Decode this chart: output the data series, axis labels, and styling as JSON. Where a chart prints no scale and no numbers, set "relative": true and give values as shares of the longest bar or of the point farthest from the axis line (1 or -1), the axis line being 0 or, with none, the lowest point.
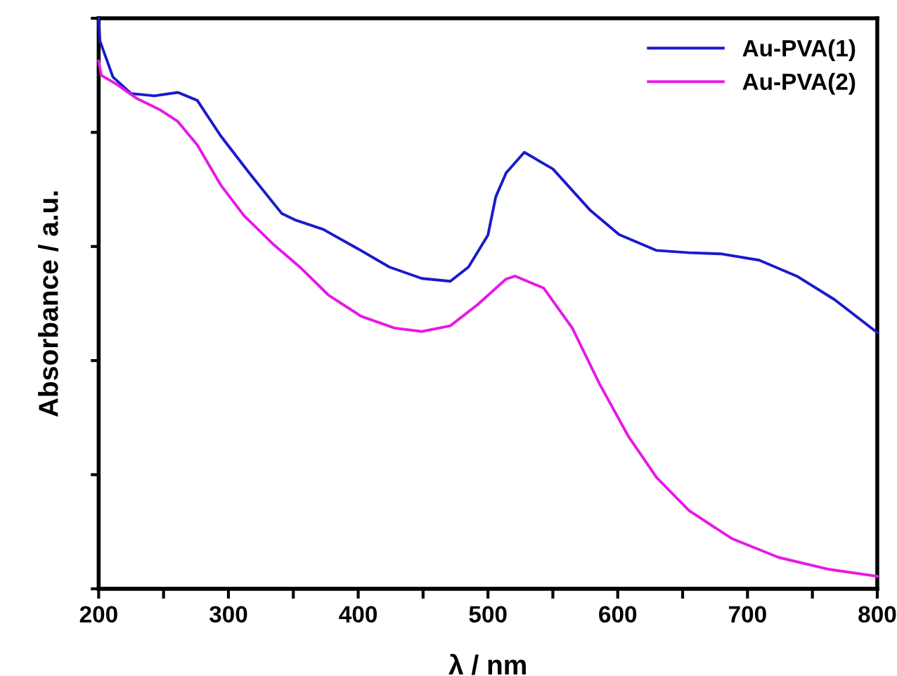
{
  "chart_data": {
    "type": "line",
    "relative": true,
    "xlabel": "λ / nm",
    "ylabel": "Absorbance / a.u.",
    "xlim": [
      200,
      800
    ],
    "xticks": [
      200,
      {
        "value": 250,
        "label": null
      },
      300,
      {
        "value": 350,
        "label": null
      },
      400,
      {
        "value": 450,
        "label": null
      },
      500,
      {
        "value": 550,
        "label": null
      },
      600,
      {
        "value": 650,
        "label": null
      },
      700,
      {
        "value": 750,
        "label": null
      },
      800
    ],
    "tick_labels": "x",
    "legend": "top right",
    "grid": false,
    "series": [
      {
        "name": "Au-PVA(1)",
        "color": "#1a1acc",
        "x": [
          200,
          201,
          211,
          225,
          243,
          261,
          276,
          294,
          316,
          341,
          352,
          373,
          399,
          424,
          449,
          471,
          485,
          500,
          506,
          514,
          528,
          550,
          579,
          601,
          630,
          655,
          680,
          709,
          738,
          767,
          800
        ],
        "values": [
          1.0,
          0.96,
          0.897,
          0.868,
          0.864,
          0.87,
          0.856,
          0.794,
          0.729,
          0.658,
          0.646,
          0.63,
          0.597,
          0.564,
          0.544,
          0.539,
          0.564,
          0.62,
          0.687,
          0.729,
          0.765,
          0.736,
          0.663,
          0.621,
          0.593,
          0.589,
          0.587,
          0.576,
          0.548,
          0.507,
          0.449
        ]
      },
      {
        "name": "Au-PVA(2)",
        "color": "#e619e6",
        "x": [
          200,
          202,
          214,
          229,
          247,
          261,
          276,
          294,
          312,
          334,
          355,
          377,
          402,
          428,
          449,
          471,
          492,
          514,
          521,
          543,
          565,
          586,
          608,
          630,
          655,
          688,
          724,
          763,
          800
        ],
        "values": [
          0.925,
          0.9,
          0.884,
          0.86,
          0.84,
          0.819,
          0.778,
          0.708,
          0.654,
          0.605,
          0.564,
          0.515,
          0.478,
          0.457,
          0.451,
          0.461,
          0.498,
          0.543,
          0.548,
          0.527,
          0.457,
          0.359,
          0.268,
          0.195,
          0.137,
          0.088,
          0.055,
          0.034,
          0.022
        ]
      }
    ]
  }
}
